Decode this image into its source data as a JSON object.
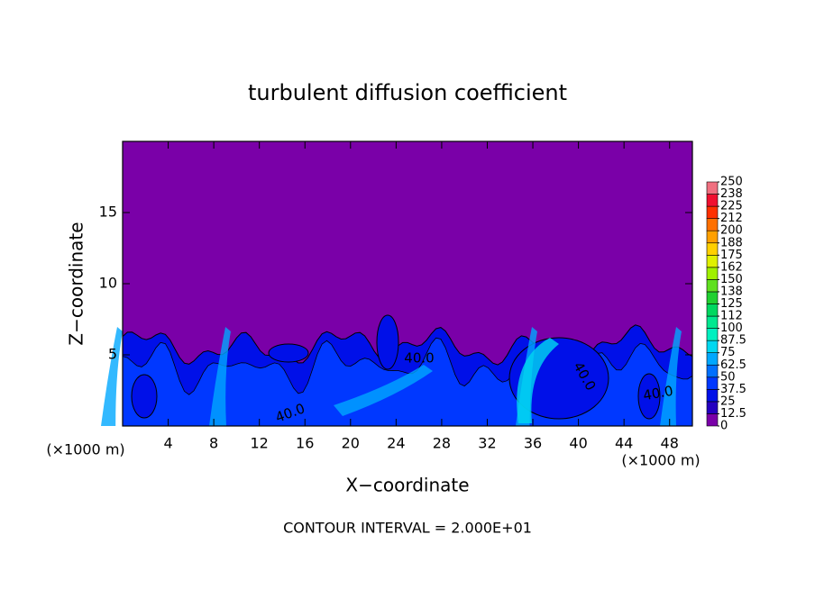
{
  "chart_data": {
    "type": "contour",
    "title": "turbulent diffusion coefficient",
    "xlabel": "X−coordinate",
    "ylabel": "Z−coordinate",
    "x_unit_left": "(×1000 m)",
    "x_unit_right": "(×1000 m)",
    "footer": "CONTOUR INTERVAL = 2.000E+01",
    "xlim": [
      0,
      50
    ],
    "xticks": [
      4,
      8,
      12,
      16,
      20,
      24,
      28,
      32,
      36,
      40,
      44,
      48
    ],
    "ylim": [
      0,
      20
    ],
    "yticks": [
      5,
      10,
      15
    ],
    "contour_labels": [
      "40.0",
      "40.0",
      "40.0",
      "40.0"
    ],
    "colorbar_levels": [
      0,
      12.5,
      25,
      37.5,
      50,
      62.5,
      75,
      87.5,
      100,
      {
        "value": 112.5,
        "label": "112"
      },
      125,
      {
        "value": 137.5,
        "label": "138"
      },
      150,
      {
        "value": 162.5,
        "label": "162"
      },
      175,
      {
        "value": 187.5,
        "label": "188"
      },
      200,
      {
        "value": 212.5,
        "label": "212"
      },
      225,
      {
        "value": 237.5,
        "label": "238"
      },
      250
    ],
    "colorbar_colors": [
      "#7a00a8",
      "#2400c0",
      "#0010e8",
      "#0038ff",
      "#0070ff",
      "#00a8ff",
      "#00d8f0",
      "#00f0c0",
      "#00e890",
      "#00d860",
      "#20d030",
      "#60e020",
      "#a0f000",
      "#e0f000",
      "#ffd000",
      "#ffa000",
      "#ff7000",
      "#ff3000",
      "#f01030",
      "#f07080"
    ]
  }
}
